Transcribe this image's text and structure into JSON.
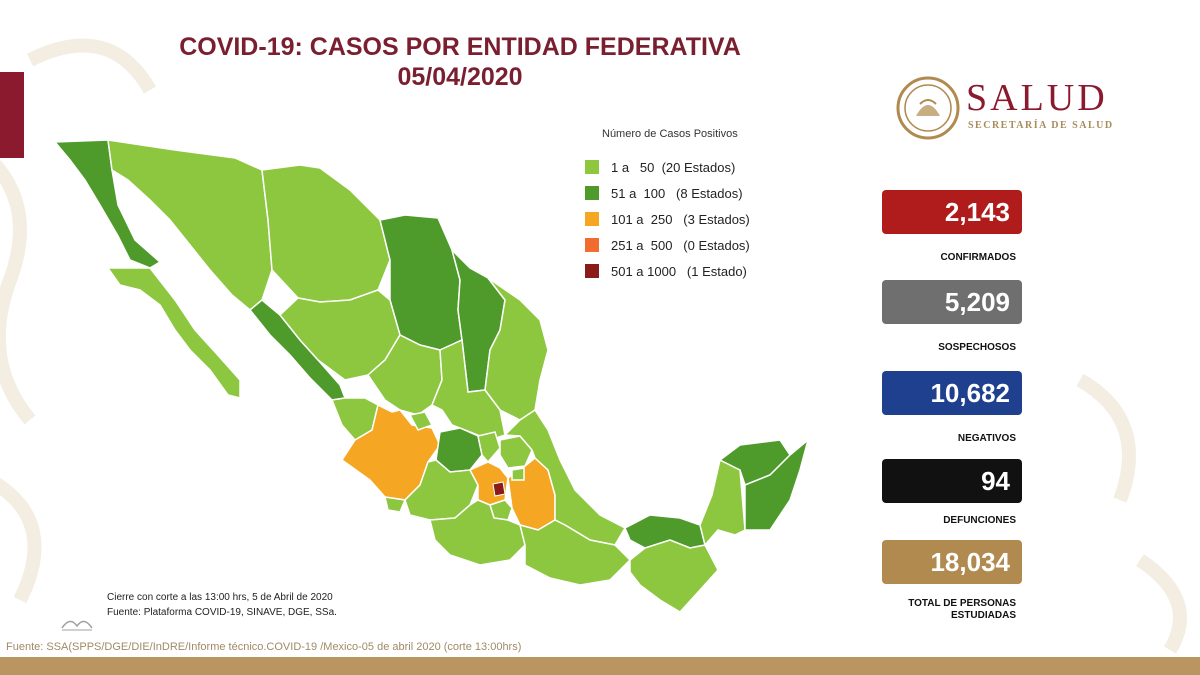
{
  "title": {
    "line1": "COVID-19: CASOS POR ENTIDAD FEDERATIVA",
    "line2": "05/04/2020"
  },
  "logo": {
    "word": "SALUD",
    "sub": "SECRETARÍA DE SALUD"
  },
  "legend": {
    "title": "Número de Casos Positivos",
    "items": [
      {
        "label": "1 a   50  (20 Estados)",
        "color": "#8dc63f"
      },
      {
        "label": "51 a  100   (8 Estados)",
        "color": "#4e9a2a"
      },
      {
        "label": "101 a  250   (3 Estados)",
        "color": "#f5a623"
      },
      {
        "label": "251 a  500   (0 Estados)",
        "color": "#f26c30"
      },
      {
        "label": "501 a 1000   (1 Estado)",
        "color": "#8b1a1a"
      }
    ]
  },
  "stats": [
    {
      "value": "2,143",
      "label": "CONFIRMADOS",
      "color": "#b01c1c"
    },
    {
      "value": "5,209",
      "label": "SOSPECHOSOS",
      "color": "#6f6f6f"
    },
    {
      "value": "10,682",
      "label": "NEGATIVOS",
      "color": "#1f3f8f"
    },
    {
      "value": "94",
      "label": "DEFUNCIONES",
      "color": "#111111"
    },
    {
      "value": "18,034",
      "label": "TOTAL DE PERSONAS ESTUDIADAS",
      "color": "#b08a4e"
    }
  ],
  "footnotes": {
    "cierre": "Cierre con corte a las 13:00 hrs, 5 de Abril de 2020",
    "fuente": "Fuente: Plataforma COVID-19, SINAVE, DGE, SSa."
  },
  "source_line": "Fuente: SSA(SPPS/DGE/DIE/InDRE/Informe técnico.COVID-19 /Mexico-05 de abril 2020 (corte 13:00hrs)",
  "map_colors": {
    "light_green": "#8dc63f",
    "dark_green": "#4e9a2a",
    "orange": "#f5a623",
    "dark_red": "#8b1a1a"
  }
}
